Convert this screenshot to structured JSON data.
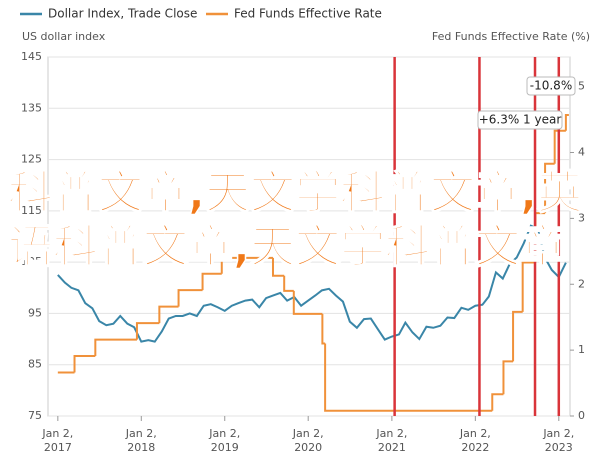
{
  "chart_data": {
    "type": "line",
    "legend": [
      "Dollar Index, Trade Close",
      "Fed Funds Effective Rate"
    ],
    "ylabel": "US dollar index",
    "y2label": "Fed Funds Effective Rate (%)",
    "series": [
      {
        "name": "Dollar Index, Trade Close",
        "color": "#3a86a8",
        "x": [
          "2017-01-02",
          "2017-02-02",
          "2017-03-02",
          "2017-04-02",
          "2017-05-02",
          "2017-06-02",
          "2017-07-02",
          "2017-08-02",
          "2017-09-02",
          "2017-10-02",
          "2017-11-02",
          "2017-12-02",
          "2018-01-02",
          "2018-02-02",
          "2018-03-02",
          "2018-04-02",
          "2018-05-02",
          "2018-06-02",
          "2018-07-02",
          "2018-08-02",
          "2018-09-02",
          "2018-10-02",
          "2018-11-02",
          "2018-12-02",
          "2019-01-02",
          "2019-02-02",
          "2019-03-02",
          "2019-04-02",
          "2019-05-02",
          "2019-06-02",
          "2019-07-02",
          "2019-08-02",
          "2019-09-02",
          "2019-10-02",
          "2019-11-02",
          "2019-12-02",
          "2020-01-02",
          "2020-02-02",
          "2020-03-02",
          "2020-04-02",
          "2020-05-02",
          "2020-06-02",
          "2020-07-02",
          "2020-08-02",
          "2020-09-02",
          "2020-10-02",
          "2020-11-02",
          "2020-12-02",
          "2021-01-02",
          "2021-02-02",
          "2021-03-02",
          "2021-04-02",
          "2021-05-02",
          "2021-06-02",
          "2021-07-02",
          "2021-08-02",
          "2021-09-02",
          "2021-10-02",
          "2021-11-02",
          "2021-12-02",
          "2022-01-02",
          "2022-02-02",
          "2022-03-02",
          "2022-04-02",
          "2022-05-02",
          "2022-06-02",
          "2022-07-02",
          "2022-08-02",
          "2022-09-02",
          "2022-10-02",
          "2022-11-02",
          "2022-12-02",
          "2023-01-02",
          "2023-02-02"
        ],
        "values": [
          102.5,
          101,
          100,
          99.5,
          97,
          96,
          93.5,
          92.7,
          93,
          94.5,
          93,
          92.3,
          89.5,
          89.8,
          89.5,
          91.5,
          94,
          94.5,
          94.5,
          95,
          94.5,
          96.5,
          96.8,
          96.2,
          95.5,
          96.5,
          97,
          97.5,
          97.7,
          96.2,
          98,
          98.5,
          99,
          97.5,
          98.2,
          96.5,
          97.5,
          98.5,
          99.5,
          99.8,
          98.5,
          97.3,
          93.4,
          92.2,
          93.9,
          94,
          91.9,
          89.9,
          90.5,
          90.9,
          93.2,
          91.3,
          90,
          92.4,
          92.2,
          92.6,
          94.2,
          94.1,
          96.1,
          95.7,
          96.5,
          96.7,
          98.3,
          103,
          101.8,
          104.7,
          105.9,
          108.7,
          112.1,
          111.5,
          105.9,
          103.5,
          102.1,
          104.9
        ]
      },
      {
        "name": "Fed Funds Effective Rate",
        "color": "#f0913a",
        "axis": "y2",
        "step": true,
        "x": [
          "2017-01-02",
          "2017-03-16",
          "2017-06-15",
          "2017-12-14",
          "2018-03-22",
          "2018-06-14",
          "2018-09-27",
          "2018-12-20",
          "2019-08-01",
          "2019-09-19",
          "2019-10-31",
          "2020-03-04",
          "2020-03-16",
          "2022-03-17",
          "2022-05-05",
          "2022-06-16",
          "2022-07-28",
          "2022-09-22",
          "2022-11-03",
          "2022-12-15",
          "2023-02-02"
        ],
        "values": [
          0.66,
          0.91,
          1.16,
          1.41,
          1.66,
          1.91,
          2.16,
          2.4,
          2.13,
          1.9,
          1.55,
          1.1,
          0.08,
          0.33,
          0.83,
          1.58,
          2.33,
          3.08,
          3.83,
          4.33,
          4.57
        ]
      }
    ],
    "xlim": [
      "2016-11-20",
      "2023-02-20"
    ],
    "xticks": [
      {
        "value": "2017-01-02",
        "label": "Jan 2, 2017"
      },
      {
        "value": "2018-01-02",
        "label": "Jan 2, 2018"
      },
      {
        "value": "2019-01-02",
        "label": "Jan 2, 2019"
      },
      {
        "value": "2020-01-02",
        "label": "Jan 2, 2020"
      },
      {
        "value": "2021-01-02",
        "label": "Jan 2, 2021"
      },
      {
        "value": "2022-01-02",
        "label": "Jan 2, 2022"
      },
      {
        "value": "2023-01-02",
        "label": "Jan 2, 2023"
      }
    ],
    "ylim": [
      75,
      145
    ],
    "yticks": [
      75,
      85,
      95,
      105,
      115,
      125,
      135,
      145
    ],
    "y2lim": [
      0,
      5.45
    ],
    "y2ticks": [
      0,
      1,
      2,
      3,
      4,
      5
    ],
    "grid": true,
    "markers": {
      "color": "#d9343a",
      "x": [
        "2021-01-14",
        "2022-01-20",
        "2022-09-20",
        "2023-01-02"
      ]
    },
    "annotations": [
      {
        "text": "-10.8%"
      },
      {
        "text": "+6.3% 1 year"
      }
    ],
    "overlay": "科普文章,天文学科普文章,英语科普文章,天文学科普文章"
  }
}
